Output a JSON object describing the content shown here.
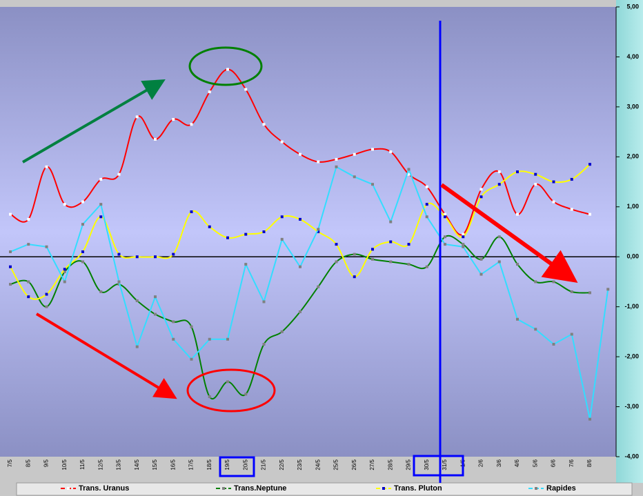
{
  "chart_data": {
    "type": "line",
    "categories": [
      "7/5",
      "8/5",
      "9/5",
      "10/5",
      "11/5",
      "12/5",
      "13/5",
      "14/5",
      "15/5",
      "16/5",
      "17/5",
      "18/5",
      "19/5",
      "20/5",
      "21/5",
      "22/5",
      "23/5",
      "24/5",
      "25/5",
      "26/5",
      "27/5",
      "28/5",
      "29/5",
      "30/5",
      "31/5",
      "1/6",
      "2/6",
      "3/6",
      "4/6",
      "5/6",
      "6/6",
      "7/6",
      "8/6",
      null
    ],
    "ylim": [
      -4,
      5
    ],
    "yticks": [
      {
        "value": -4,
        "label": "-4,00"
      },
      {
        "value": -3,
        "label": "-3,00"
      },
      {
        "value": -2,
        "label": "-2,00"
      },
      {
        "value": -1,
        "label": "-1,00"
      },
      {
        "value": 0,
        "label": "0,00"
      },
      {
        "value": 1,
        "label": "1,00"
      },
      {
        "value": 2,
        "label": "2,00"
      },
      {
        "value": 3,
        "label": "3,00"
      },
      {
        "value": 4,
        "label": "4,00"
      },
      {
        "value": 5,
        "label": "5,00"
      }
    ],
    "series": [
      {
        "name": "Trans. Uranus",
        "color": "#ff0000",
        "marker_color": "#ffffff",
        "smooth": true,
        "values": [
          0.85,
          0.75,
          1.8,
          1.05,
          1.1,
          1.55,
          1.65,
          2.8,
          2.35,
          2.75,
          2.65,
          3.3,
          3.75,
          3.35,
          2.65,
          2.3,
          2.05,
          1.9,
          1.95,
          2.05,
          2.15,
          2.1,
          1.65,
          1.4,
          0.85,
          0.45,
          1.35,
          1.7,
          0.85,
          1.45,
          1.1,
          0.95,
          0.85,
          null
        ]
      },
      {
        "name": "Trans.Neptune",
        "color": "#008000",
        "marker_color": "#808080",
        "smooth": true,
        "values": [
          -0.55,
          -0.5,
          -1.0,
          -0.3,
          -0.1,
          -0.7,
          -0.55,
          -0.88,
          -1.15,
          -1.3,
          -1.4,
          -2.8,
          -2.5,
          -2.75,
          -1.75,
          -1.5,
          -1.1,
          -0.6,
          -0.1,
          0.05,
          -0.05,
          -0.1,
          -0.15,
          -0.2,
          0.4,
          0.25,
          -0.05,
          0.4,
          -0.15,
          -0.5,
          -0.5,
          -0.7,
          -0.72,
          null
        ]
      },
      {
        "name": "Trans. Pluton",
        "color": "#ffff00",
        "marker_color": "#0000cc",
        "smooth": true,
        "values": [
          -0.2,
          -0.8,
          -0.75,
          -0.25,
          0.1,
          0.8,
          0.05,
          0.0,
          0.0,
          0.05,
          0.9,
          0.6,
          0.38,
          0.45,
          0.5,
          0.8,
          0.75,
          0.5,
          0.25,
          -0.4,
          0.15,
          0.3,
          0.25,
          1.05,
          0.8,
          0.4,
          1.2,
          1.45,
          1.7,
          1.65,
          1.5,
          1.55,
          1.85,
          null
        ]
      },
      {
        "name": "Rapides",
        "color": "#33ddff",
        "marker_color": "#808080",
        "smooth": false,
        "values": [
          0.1,
          0.25,
          0.2,
          -0.5,
          0.65,
          1.05,
          -0.5,
          -1.8,
          -0.8,
          -1.65,
          -2.05,
          -1.65,
          -1.65,
          -0.15,
          -0.9,
          0.35,
          -0.2,
          0.55,
          1.8,
          1.6,
          1.45,
          0.7,
          1.75,
          0.8,
          0.25,
          0.2,
          -0.35,
          -0.1,
          -1.25,
          -1.45,
          -1.75,
          -1.55,
          -3.25,
          -0.65
        ]
      }
    ]
  }
}
